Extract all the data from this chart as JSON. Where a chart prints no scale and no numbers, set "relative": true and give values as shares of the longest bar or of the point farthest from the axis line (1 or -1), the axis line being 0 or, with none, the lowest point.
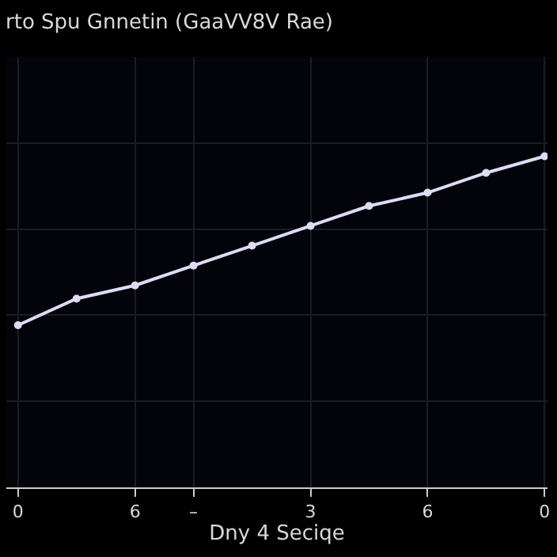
{
  "chart_data": {
    "type": "line",
    "title": "rto Spu Gnnetin (GaaVV8V Rae)",
    "xlabel": "Dny 4 Seciqe",
    "categories": [
      "0",
      null,
      "6",
      "–",
      null,
      "3",
      null,
      "6",
      null,
      "0"
    ],
    "relative": true,
    "series": [
      {
        "color": "#dcdcf5",
        "values": [
          0.49,
          0.57,
          0.61,
          0.67,
          0.73,
          0.79,
          0.85,
          0.89,
          0.95,
          1.0
        ]
      }
    ],
    "grid": true,
    "marker": "circle",
    "line_style": "solid"
  }
}
